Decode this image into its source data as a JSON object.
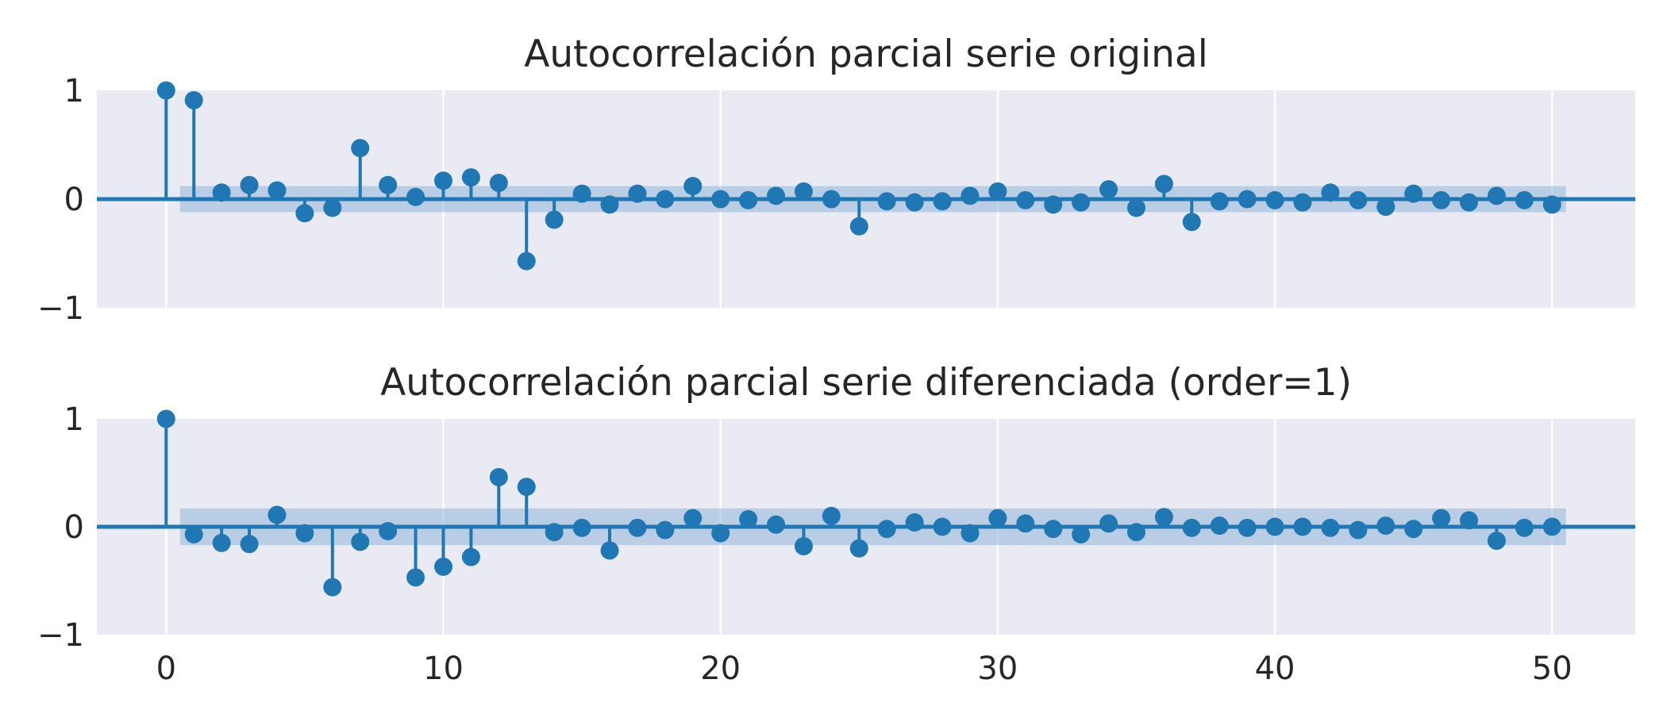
{
  "chart_data": [
    {
      "type": "stem",
      "title": "Autocorrelación parcial serie original",
      "xlabel": "",
      "ylabel": "",
      "xlim": [
        -2.5,
        53
      ],
      "ylim": [
        -1,
        1
      ],
      "yticks": [
        "1",
        "0",
        "−1"
      ],
      "xticks": [],
      "grid": true,
      "confidence_band": 0.12,
      "x": [
        0,
        1,
        2,
        3,
        4,
        5,
        6,
        7,
        8,
        9,
        10,
        11,
        12,
        13,
        14,
        15,
        16,
        17,
        18,
        19,
        20,
        21,
        22,
        23,
        24,
        25,
        26,
        27,
        28,
        29,
        30,
        31,
        32,
        33,
        34,
        35,
        36,
        37,
        38,
        39,
        40,
        41,
        42,
        43,
        44,
        45,
        46,
        47,
        48,
        49,
        50
      ],
      "values": [
        1.0,
        0.91,
        0.06,
        0.13,
        0.08,
        -0.13,
        -0.08,
        0.47,
        0.13,
        0.02,
        0.17,
        0.2,
        0.15,
        -0.57,
        -0.19,
        0.05,
        -0.05,
        0.05,
        0.0,
        0.12,
        0.0,
        -0.01,
        0.03,
        0.07,
        0.0,
        -0.25,
        -0.02,
        -0.03,
        -0.02,
        0.03,
        0.07,
        -0.01,
        -0.05,
        -0.03,
        0.09,
        -0.08,
        0.14,
        -0.21,
        -0.02,
        0.0,
        -0.01,
        -0.03,
        0.06,
        -0.01,
        -0.07,
        0.05,
        -0.01,
        -0.03,
        0.03,
        -0.01,
        -0.05
      ]
    },
    {
      "type": "stem",
      "title": "Autocorrelación parcial serie diferenciada (order=1)",
      "xlabel": "",
      "ylabel": "",
      "xlim": [
        -2.5,
        53
      ],
      "ylim": [
        -1,
        1
      ],
      "yticks": [
        "1",
        "0",
        "−1"
      ],
      "xticks": [
        "0",
        "10",
        "20",
        "30",
        "40",
        "50"
      ],
      "grid": true,
      "confidence_band": 0.17,
      "x": [
        0,
        1,
        2,
        3,
        4,
        5,
        6,
        7,
        8,
        9,
        10,
        11,
        12,
        13,
        14,
        15,
        16,
        17,
        18,
        19,
        20,
        21,
        22,
        23,
        24,
        25,
        26,
        27,
        28,
        29,
        30,
        31,
        32,
        33,
        34,
        35,
        36,
        37,
        38,
        39,
        40,
        41,
        42,
        43,
        44,
        45,
        46,
        47,
        48,
        49,
        50
      ],
      "values": [
        1.0,
        -0.07,
        -0.15,
        -0.16,
        0.11,
        -0.06,
        -0.56,
        -0.14,
        -0.04,
        -0.47,
        -0.37,
        -0.28,
        0.46,
        0.37,
        -0.05,
        -0.01,
        -0.22,
        -0.01,
        -0.03,
        0.08,
        -0.06,
        0.07,
        0.02,
        -0.18,
        0.1,
        -0.2,
        -0.02,
        0.04,
        0.0,
        -0.06,
        0.08,
        0.03,
        -0.02,
        -0.07,
        0.03,
        -0.05,
        0.09,
        -0.01,
        0.01,
        -0.01,
        0.0,
        0.0,
        -0.01,
        -0.03,
        0.01,
        -0.02,
        0.08,
        0.06,
        -0.13,
        -0.01,
        0.0
      ]
    }
  ],
  "colors": {
    "stem": "#1f77b4",
    "band": "#8fb4d8",
    "plot_bg": "#eaeaf2",
    "grid": "#ffffff",
    "text": "#262626"
  }
}
